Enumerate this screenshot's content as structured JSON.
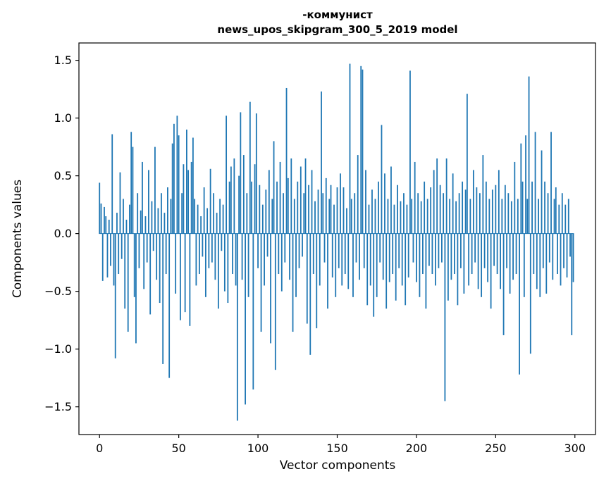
{
  "figure": {
    "title_line1": "-коммунист",
    "title_line2": "news_upos_skipgram_300_5_2019 model",
    "xlabel": "Vector components",
    "ylabel": "Components values"
  },
  "chart_data": {
    "type": "bar",
    "title": "-коммунист",
    "subtitle": "news_upos_skipgram_300_5_2019 model",
    "xlabel": "Vector components",
    "ylabel": "Components values",
    "bar_color": "#1f77b4",
    "legend": "none",
    "grid": false,
    "xlim": [
      -13,
      313
    ],
    "ylim": [
      -1.74,
      1.65
    ],
    "xticks": [
      0,
      50,
      100,
      150,
      200,
      250,
      300
    ],
    "xtick_labels": [
      "0",
      "50",
      "100",
      "150",
      "200",
      "250",
      "300"
    ],
    "yticks": [
      1.5,
      1.0,
      0.5,
      0.0,
      -0.5,
      -1.0,
      -1.5
    ],
    "ytick_labels": [
      "1.5",
      "1.0",
      "0.5",
      "0.0",
      "−0.5",
      "−1.0",
      "−1.5"
    ],
    "values": [
      0.44,
      0.26,
      -0.41,
      0.23,
      0.15,
      -0.38,
      0.12,
      -0.28,
      0.86,
      -0.45,
      -1.08,
      0.18,
      -0.35,
      0.53,
      -0.22,
      0.3,
      -0.65,
      0.12,
      -0.85,
      0.25,
      0.88,
      0.75,
      -0.55,
      -0.95,
      0.35,
      -0.3,
      0.2,
      0.62,
      -0.48,
      0.15,
      -0.25,
      0.55,
      -0.7,
      0.28,
      -0.15,
      0.75,
      -0.4,
      0.22,
      -0.6,
      0.35,
      -1.13,
      0.18,
      -0.35,
      0.4,
      -1.25,
      0.3,
      0.78,
      0.95,
      -0.52,
      1.02,
      0.85,
      -0.75,
      0.35,
      0.6,
      -0.68,
      0.9,
      0.55,
      -0.8,
      0.62,
      0.83,
      0.3,
      -0.45,
      0.25,
      -0.35,
      0.15,
      -0.2,
      0.4,
      -0.55,
      0.22,
      -0.3,
      0.56,
      -0.25,
      0.35,
      -0.4,
      0.18,
      -0.65,
      0.3,
      -0.15,
      0.25,
      -0.5,
      1.02,
      -0.6,
      0.45,
      0.58,
      -0.35,
      0.65,
      -0.45,
      -1.62,
      0.5,
      1.05,
      -0.4,
      0.68,
      -1.48,
      0.35,
      -0.55,
      1.14,
      0.45,
      -1.35,
      0.6,
      1.04,
      -0.3,
      0.42,
      -0.85,
      0.25,
      -0.45,
      0.38,
      -0.2,
      0.55,
      -0.95,
      0.3,
      0.8,
      -1.18,
      0.45,
      -0.35,
      0.62,
      -0.5,
      0.35,
      -0.25,
      1.26,
      0.48,
      -0.4,
      0.65,
      -0.85,
      0.3,
      -0.55,
      0.45,
      -0.3,
      0.58,
      -0.2,
      0.35,
      0.65,
      -0.78,
      0.42,
      -1.05,
      0.55,
      -0.35,
      0.28,
      -0.82,
      0.38,
      -0.45,
      1.23,
      0.35,
      -0.25,
      0.48,
      -0.65,
      0.3,
      0.42,
      -0.38,
      0.25,
      -0.55,
      0.4,
      -0.3,
      0.52,
      -0.45,
      0.4,
      -0.35,
      0.22,
      -0.48,
      1.47,
      0.3,
      -0.55,
      0.35,
      -0.25,
      0.68,
      -0.4,
      1.45,
      1.42,
      -0.3,
      0.55,
      -0.62,
      0.25,
      -0.45,
      0.38,
      -0.72,
      0.3,
      -0.55,
      0.45,
      -0.25,
      0.94,
      -0.4,
      0.52,
      -0.65,
      0.3,
      -0.42,
      0.58,
      -0.35,
      0.25,
      -0.58,
      0.42,
      -0.3,
      0.28,
      -0.45,
      0.35,
      -0.62,
      0.25,
      -0.38,
      1.41,
      0.3,
      -0.25,
      0.62,
      -0.42,
      0.35,
      -0.55,
      0.28,
      -0.35,
      0.45,
      -0.65,
      0.3,
      -0.28,
      0.4,
      -0.35,
      0.55,
      -0.45,
      0.65,
      -0.3,
      0.42,
      -0.25,
      0.35,
      -1.45,
      0.65,
      -0.58,
      0.3,
      -0.4,
      0.52,
      -0.35,
      0.28,
      -0.62,
      0.35,
      -0.3,
      0.45,
      -0.52,
      0.38,
      1.21,
      -0.45,
      0.3,
      -0.35,
      0.55,
      -0.25,
      0.4,
      -0.48,
      0.35,
      -0.55,
      0.68,
      -0.3,
      0.45,
      -0.42,
      0.3,
      -0.65,
      0.38,
      -0.28,
      0.42,
      -0.35,
      0.55,
      -0.48,
      0.3,
      -0.88,
      0.42,
      -0.3,
      0.35,
      -0.52,
      0.28,
      -0.4,
      0.62,
      -0.35,
      0.3,
      -1.22,
      0.78,
      0.45,
      -0.55,
      0.85,
      0.3,
      1.36,
      -1.04,
      0.45,
      -0.35,
      0.88,
      -0.48,
      0.3,
      -0.55,
      0.72,
      -0.3,
      0.45,
      -0.52,
      0.35,
      -0.25,
      0.88,
      -0.4,
      0.3,
      0.4,
      -0.35,
      0.25,
      -0.45,
      0.35,
      -0.3,
      0.25,
      -0.38,
      0.3,
      -0.2,
      -0.88,
      -0.42
    ]
  }
}
